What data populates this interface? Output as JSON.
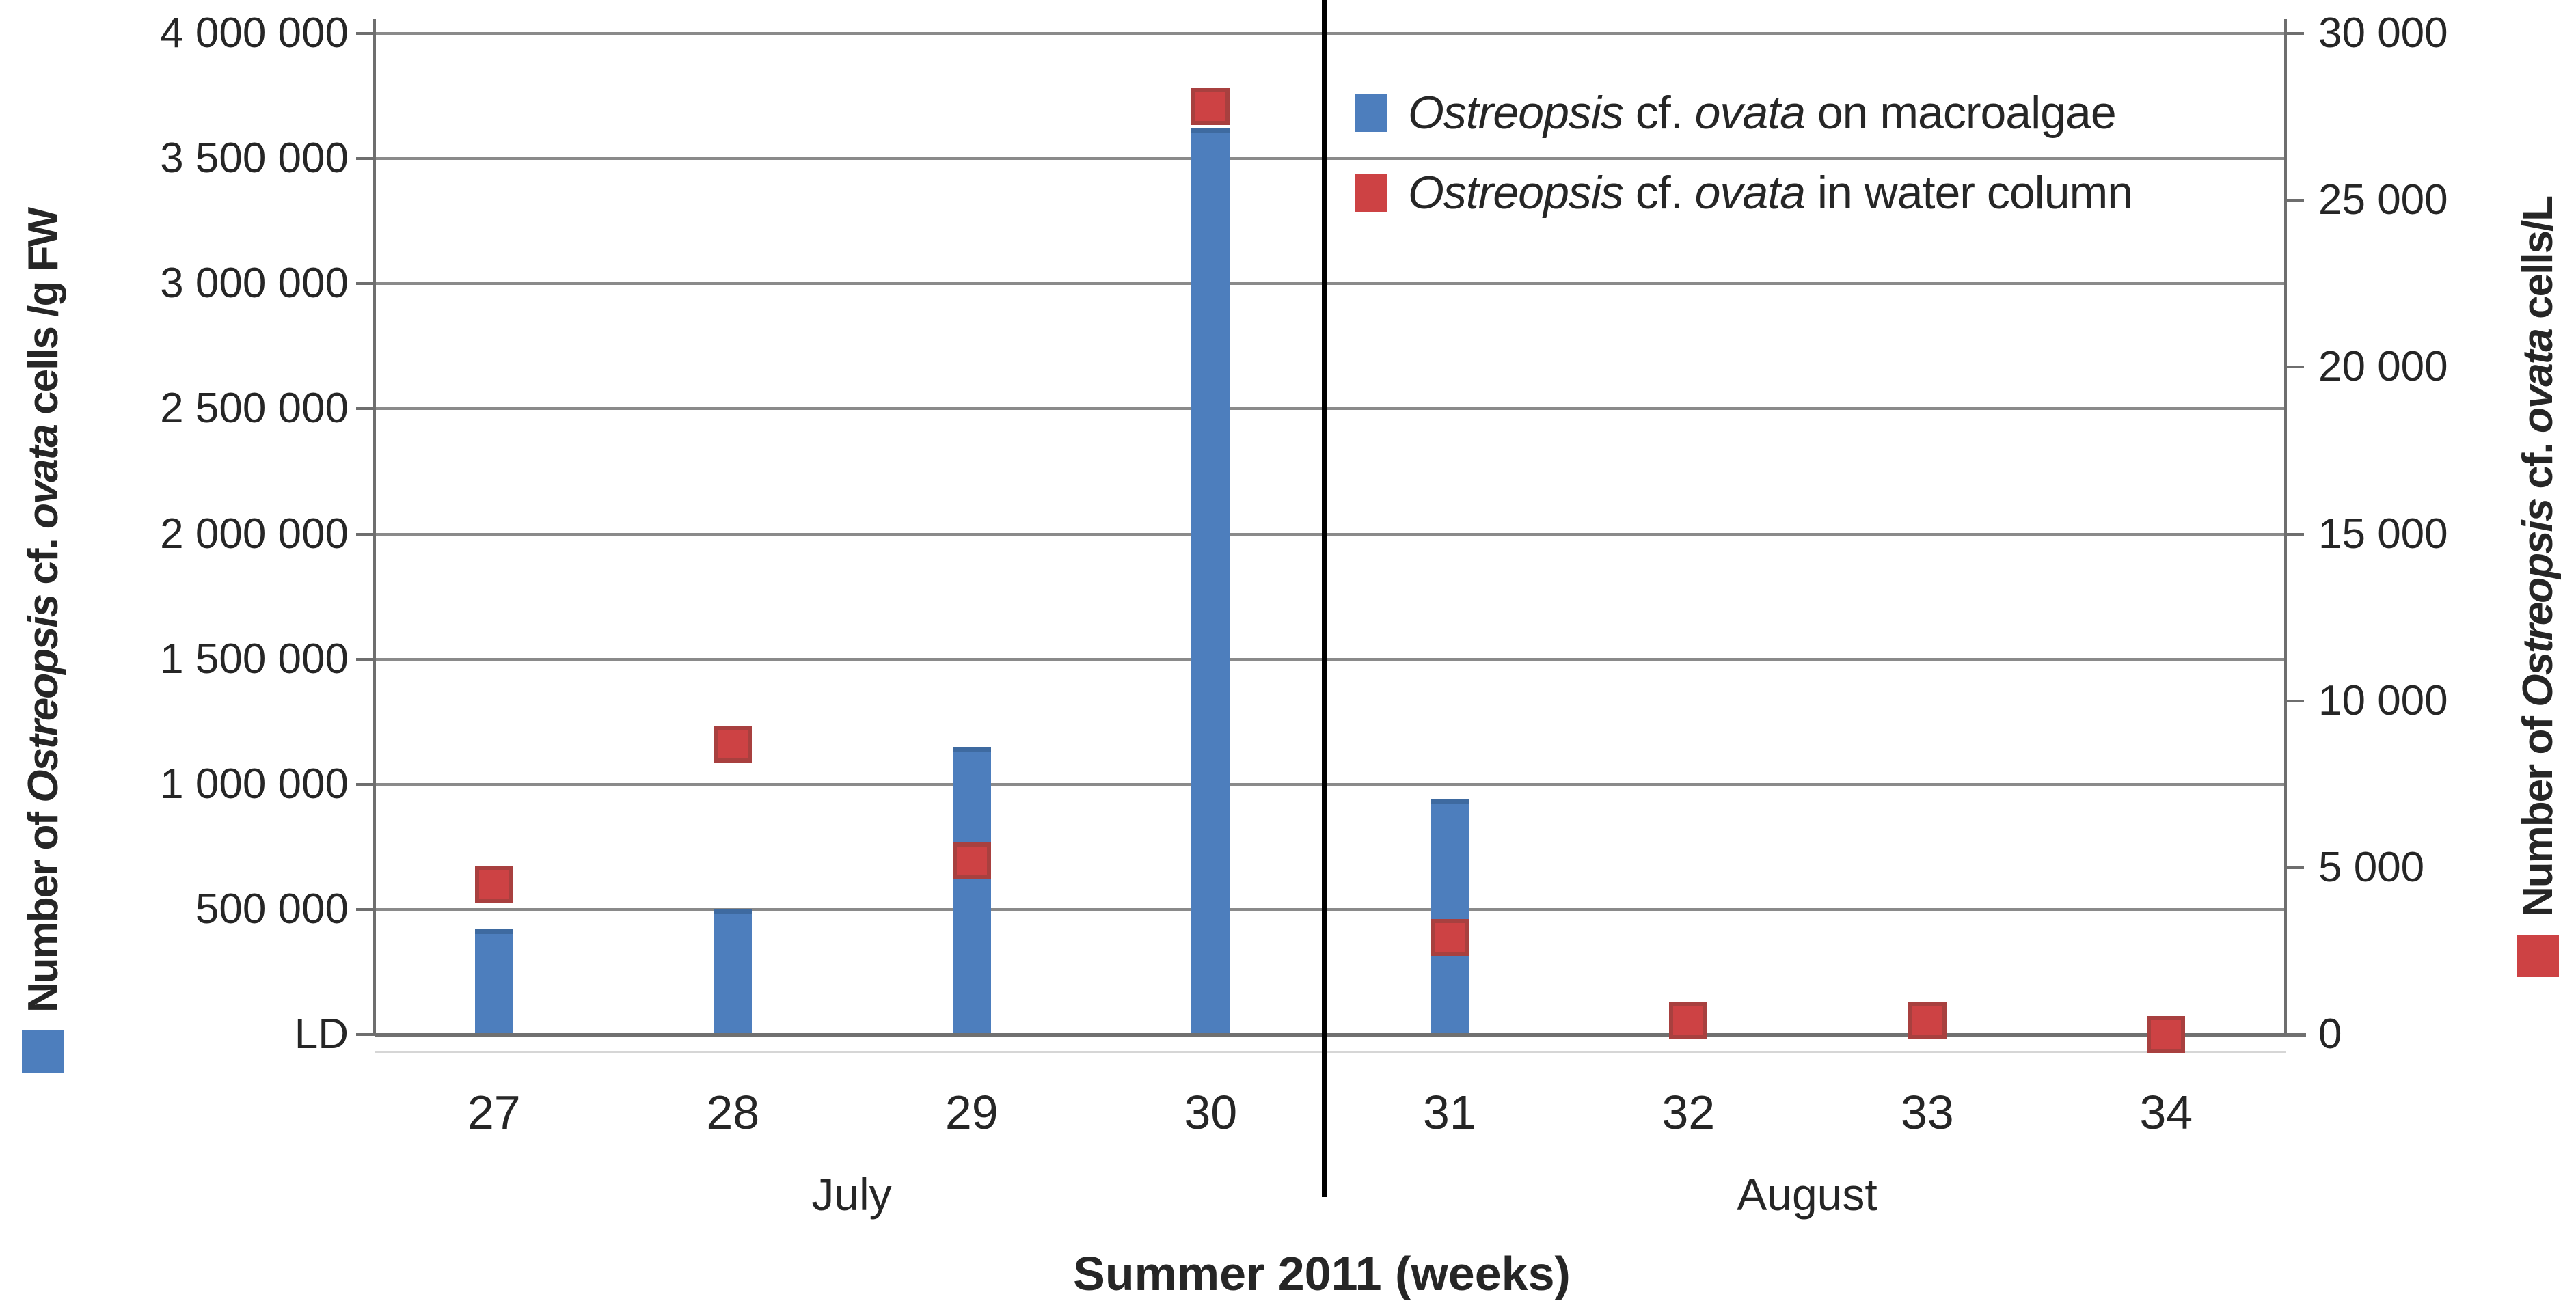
{
  "chart_data": {
    "type": "bar",
    "title": "",
    "xlabel": "Summer 2011 (weeks)",
    "categories": [
      "27",
      "28",
      "29",
      "30",
      "31",
      "32",
      "33",
      "34"
    ],
    "month_groups": [
      {
        "label": "July",
        "weeks": [
          "27",
          "28",
          "29",
          "30"
        ]
      },
      {
        "label": "August",
        "weeks": [
          "31",
          "32",
          "33",
          "34"
        ]
      }
    ],
    "series": [
      {
        "name": "Ostreopsis cf. ovata on macroalgae",
        "marker": "bar",
        "axis": "left",
        "unit": "cells/g FW",
        "color": "#4D7EBD",
        "values": [
          420000,
          500000,
          1150000,
          3620000,
          940000,
          null,
          null,
          null
        ]
      },
      {
        "name": "Ostreopsis cf. ovata in water column",
        "marker": "square",
        "axis": "right",
        "unit": "cells/L",
        "color": "#CD4244",
        "values": [
          4500,
          8700,
          5200,
          27800,
          2900,
          400,
          400,
          0
        ]
      }
    ],
    "left_axis": {
      "range": [
        0,
        4000000
      ],
      "zero_label": "LD",
      "tick_labels": [
        "4 000 000",
        "3 500 000",
        "3 000 000",
        "2 500 000",
        "2 000 000",
        "1 500 000",
        "1 000 000",
        "500 000",
        "LD"
      ]
    },
    "right_axis": {
      "range": [
        0,
        30000
      ],
      "tick_labels": [
        "30 000",
        "25 000",
        "20 000",
        "15 000",
        "10 000",
        "5 000",
        "0"
      ]
    },
    "grid": true,
    "legend_position": "top-right-inside"
  },
  "left_axis_title": {
    "segments": [
      {
        "t": "Number of ",
        "i": false
      },
      {
        "t": "Ostreopsis",
        "i": true
      },
      {
        "t": " cf. ",
        "i": false
      },
      {
        "t": "ovata",
        "i": true
      },
      {
        "t": " cells /g FW",
        "i": false
      }
    ]
  },
  "right_axis_title": {
    "segments": [
      {
        "t": "Number of ",
        "i": false
      },
      {
        "t": "Ostreopsis",
        "i": true
      },
      {
        "t": " cf. ",
        "i": false
      },
      {
        "t": "ovata",
        "i": true
      },
      {
        "t": "  cells/L",
        "i": false
      }
    ]
  },
  "x_axis_title": "Summer 2011 (weeks)",
  "legend": {
    "items": [
      {
        "swatch_color": "#4D7EBD",
        "segments": [
          {
            "t": "Ostreopsis",
            "i": true
          },
          {
            "t": " cf. ",
            "i": false
          },
          {
            "t": "ovata",
            "i": true
          },
          {
            "t": " on macroalgae",
            "i": false
          }
        ]
      },
      {
        "swatch_color": "#CD4244",
        "segments": [
          {
            "t": "Ostreopsis",
            "i": true
          },
          {
            "t": " cf. ",
            "i": false
          },
          {
            "t": "ovata",
            "i": true
          },
          {
            "t": " in water column",
            "i": false
          }
        ]
      }
    ]
  },
  "colors": {
    "bar_blue": "#4D7EBD",
    "bar_blue_edge": "#3E6AA0",
    "square_red": "#CD4244",
    "square_red_edge": "#A8403F",
    "gridline": "#8A8A8A",
    "axis_line": "#6E6E6E",
    "divider": "#000000",
    "text": "#262626"
  }
}
